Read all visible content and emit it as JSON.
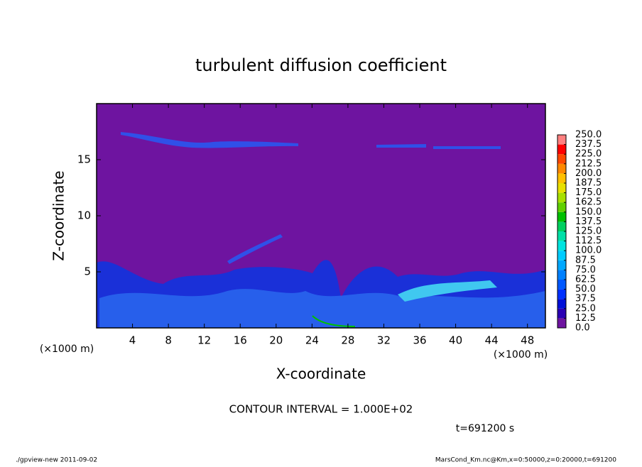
{
  "chart_data": {
    "type": "field",
    "title": "turbulent diffusion coefficient",
    "x_label": "X-coordinate",
    "y_label": "Z-coordinate",
    "x_unit": "(×1000 m)",
    "xlim": [
      0,
      50
    ],
    "xticks": [
      4,
      8,
      12,
      16,
      20,
      24,
      28,
      32,
      36,
      40,
      44,
      48
    ],
    "ylim": [
      0,
      20
    ],
    "yticks": [
      5,
      10,
      15
    ],
    "contour_note": "CONTOUR INTERVAL = 1.000E+02",
    "time_label": "t=691200 s",
    "colorbar": {
      "levels": [
        {
          "value": 0,
          "label": "0.0"
        },
        {
          "value": 12.5,
          "label": "12.5"
        },
        {
          "value": 25,
          "label": "25.0"
        },
        {
          "value": 37.5,
          "label": "37.5"
        },
        {
          "value": 50,
          "label": "50.0"
        },
        {
          "value": 62.5,
          "label": "62.5"
        },
        {
          "value": 75,
          "label": "75.0"
        },
        {
          "value": 87.5,
          "label": "87.5"
        },
        {
          "value": 100,
          "label": "100.0"
        },
        {
          "value": 112.5,
          "label": "112.5"
        },
        {
          "value": 125,
          "label": "125.0"
        },
        {
          "value": 137.5,
          "label": "137.5"
        },
        {
          "value": 150,
          "label": "150.0"
        },
        {
          "value": 162.5,
          "label": "162.5"
        },
        {
          "value": 175,
          "label": "175.0"
        },
        {
          "value": 187.5,
          "label": "187.5"
        },
        {
          "value": 200,
          "label": "200.0"
        },
        {
          "value": 212.5,
          "label": "212.5"
        },
        {
          "value": 225,
          "label": "225.0"
        },
        {
          "value": 237.5,
          "label": "237.5"
        },
        {
          "value": 250,
          "label": "250.0"
        }
      ],
      "colors": [
        "#6e14a0",
        "#2a00b4",
        "#0010d8",
        "#0030ff",
        "#0058ff",
        "#0080ff",
        "#00a8ff",
        "#00ccff",
        "#00e4e0",
        "#00e0a8",
        "#00d060",
        "#00c000",
        "#60d000",
        "#a8e000",
        "#e8e000",
        "#ffc000",
        "#ff8800",
        "#ff4800",
        "#ff0000",
        "#ff8080"
      ]
    },
    "footer_left": "./gpview-new  2011-09-02",
    "footer_right": "MarsCond_Km.nc@Km,x=0:50000,z=0:20000,t=691200"
  }
}
